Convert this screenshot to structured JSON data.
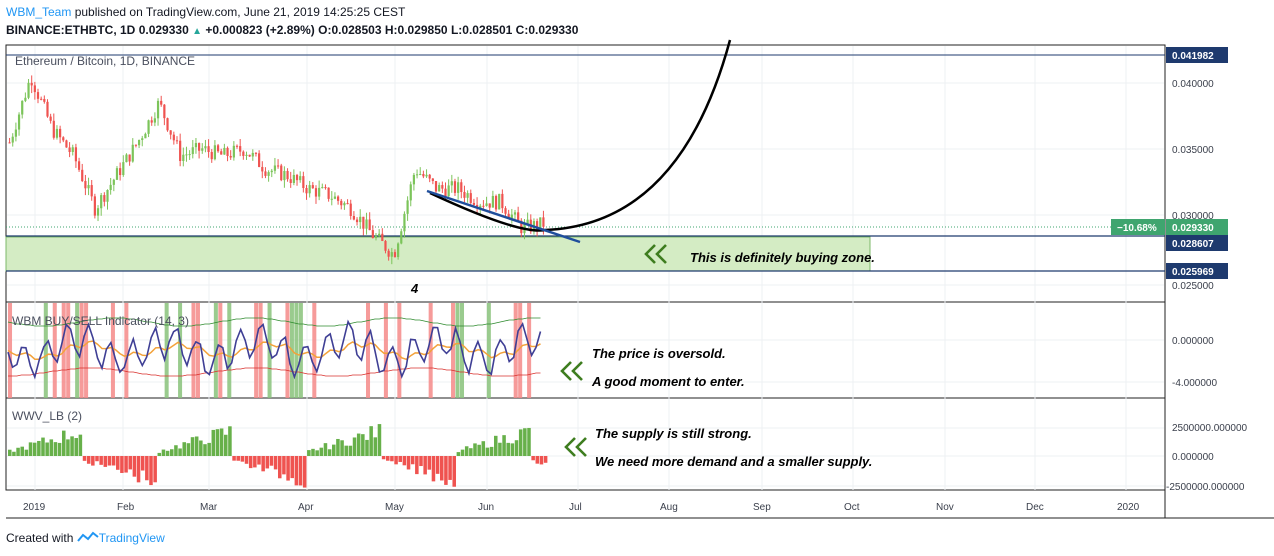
{
  "header": {
    "author": "WBM_Team",
    "published": "published on TradingView.com, June 21, 2019 14:25:25 CEST",
    "symbol": "BINANCE:ETHBTC, 1D",
    "last": "0.029330",
    "change": "+0.000823 (+2.89%)",
    "ohlc_o_label": "O:",
    "ohlc_o": "0.028503",
    "ohlc_h_label": "H:",
    "ohlc_h": "0.029850",
    "ohlc_l_label": "L:",
    "ohlc_l": "0.028501",
    "ohlc_c_label": "C:",
    "ohlc_c": "0.029330"
  },
  "price_pane": {
    "title": "Ethereum / Bitcoin, 1D, BINANCE",
    "y_ticks": [
      "0.040000",
      "0.035000",
      "0.030000",
      "0.025000"
    ],
    "tags": {
      "top_line": "0.041982",
      "change_pct": "−10.68%",
      "current": "0.029330",
      "zone_top": "0.028607",
      "zone_bottom": "0.025969"
    },
    "wave_label": "4",
    "zone_note": "This is definitely buying zone."
  },
  "indicator_pane": {
    "title": "WBM BUY/SELL Indicator (14, 3)",
    "y_ticks": [
      "0.000000",
      "-4.000000"
    ],
    "note_line1": "The price is oversold.",
    "note_line2": "A good moment to enter."
  },
  "volume_pane": {
    "title": "WWV_LB (2)",
    "y_ticks": [
      "2500000.000000",
      "0.000000",
      "-2500000.000000"
    ],
    "note_line1": "The supply is still strong.",
    "note_line2": "We need more demand and a smaller supply."
  },
  "x_axis": {
    "labels": [
      "2019",
      "Feb",
      "Mar",
      "Apr",
      "May",
      "Jun",
      "Jul",
      "Aug",
      "Sep",
      "Oct",
      "Nov",
      "Dec",
      "2020"
    ]
  },
  "colors": {
    "up": "#26a69a",
    "candle_up": "#7cc45a",
    "down": "#ef5350",
    "tag_blue": "#1e3a6e",
    "tag_green": "#3fa56f",
    "zone_fill": "#d4ecc4",
    "zone_border": "#7cb86a",
    "trend": "#1f4e9c",
    "arrow": "#3e7d1f"
  },
  "footer": {
    "created": "Created with",
    "brand": "TradingView"
  },
  "chart_data": {
    "type": "candlestick",
    "series": [
      {
        "name": "BINANCE:ETHBTC, 1D",
        "x": [
          "2019-01-01",
          "2019-01-08",
          "2019-01-15",
          "2019-01-22",
          "2019-01-29",
          "2019-02-05",
          "2019-02-12",
          "2019-02-19",
          "2019-02-26",
          "2019-03-05",
          "2019-03-12",
          "2019-03-19",
          "2019-03-26",
          "2019-04-02",
          "2019-04-09",
          "2019-04-16",
          "2019-04-23",
          "2019-04-30",
          "2019-05-07",
          "2019-05-14",
          "2019-05-21",
          "2019-05-28",
          "2019-06-04",
          "2019-06-11",
          "2019-06-18",
          "2019-06-21"
        ],
        "values": [
          0.0355,
          0.0405,
          0.0365,
          0.0345,
          0.0305,
          0.033,
          0.0355,
          0.0385,
          0.0345,
          0.035,
          0.0345,
          0.035,
          0.0335,
          0.033,
          0.032,
          0.0315,
          0.0305,
          0.0285,
          0.027,
          0.0335,
          0.032,
          0.032,
          0.031,
          0.031,
          0.029,
          0.02933
        ]
      }
    ],
    "ylim": [
      0.024,
      0.042
    ]
  }
}
